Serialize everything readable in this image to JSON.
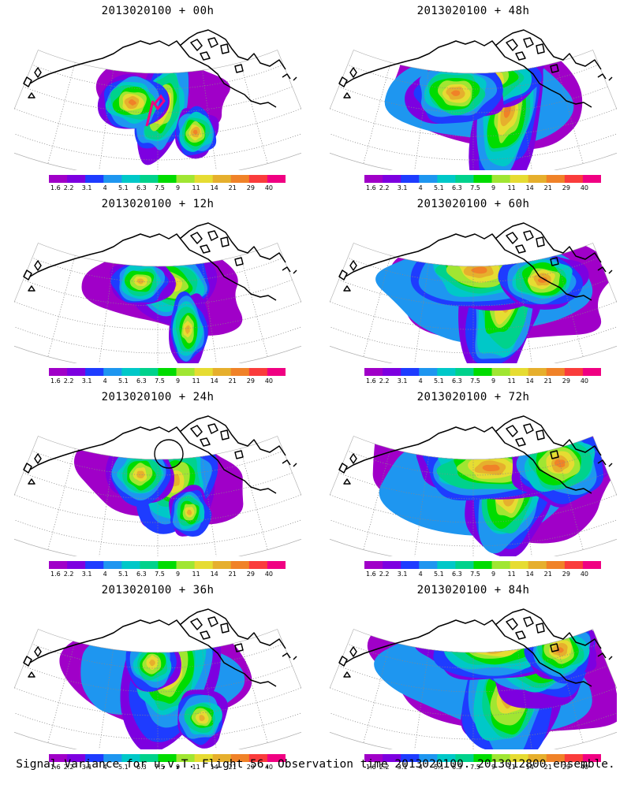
{
  "panels": [
    {
      "title": "2013020100 + 00h",
      "forecast_hours": 0
    },
    {
      "title": "2013020100 + 48h",
      "forecast_hours": 48
    },
    {
      "title": "2013020100 + 12h",
      "forecast_hours": 12
    },
    {
      "title": "2013020100 + 60h",
      "forecast_hours": 60
    },
    {
      "title": "2013020100 + 24h",
      "forecast_hours": 24
    },
    {
      "title": "2013020100 + 72h",
      "forecast_hours": 72
    },
    {
      "title": "2013020100 + 36h",
      "forecast_hours": 36
    },
    {
      "title": "2013020100 + 84h",
      "forecast_hours": 84
    }
  ],
  "colorbar": {
    "labels": [
      "1.6",
      "2.2",
      "3.1",
      "4",
      "5.1",
      "6.3",
      "7.5",
      "9",
      "11",
      "14",
      "21",
      "29",
      "40"
    ],
    "colors": [
      "#a000c8",
      "#7d00e0",
      "#1e3cff",
      "#1e96f0",
      "#00c8c8",
      "#00d28c",
      "#00dc00",
      "#a0e632",
      "#e6dc32",
      "#e6af2d",
      "#f08228",
      "#fa3c3c",
      "#f00082"
    ]
  },
  "footer": "Signal Variance for u,v,T. Flight 56. Observation time 2013020100. 2013012800 ensemble."
}
